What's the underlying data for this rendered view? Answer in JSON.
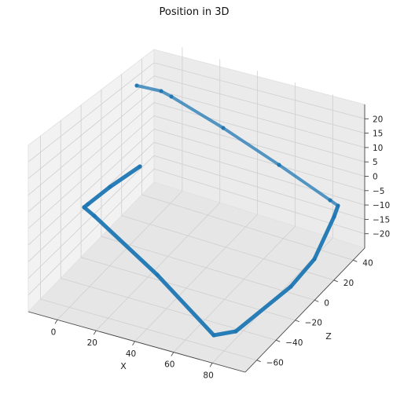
{
  "chart_data": {
    "type": "scatter",
    "title": "Position in 3D",
    "xlabel": "X",
    "ylabel": "",
    "zlabel": "Z",
    "x_ticks": [
      "0",
      "20",
      "40",
      "60",
      "80"
    ],
    "z_ticks": [
      "−60",
      "−40",
      "−20",
      "0",
      "20",
      "40"
    ],
    "y_ticks": [
      "20",
      "15",
      "10",
      "5",
      "0",
      "−5",
      "−10",
      "−15",
      "−20"
    ],
    "grid": true,
    "color": "#1f77b4",
    "path_vertices": [
      {
        "x": -6,
        "y": 20,
        "z": 45
      },
      {
        "x": 0,
        "y": 20,
        "z": 50
      },
      {
        "x": 8,
        "y": 19,
        "z": 52
      },
      {
        "x": 30,
        "y": 12,
        "z": 40
      },
      {
        "x": 55,
        "y": 2,
        "z": 25
      },
      {
        "x": 78,
        "y": -7,
        "z": 12
      },
      {
        "x": 83,
        "y": -10,
        "z": 8
      },
      {
        "x": 85,
        "y": -12,
        "z": 0
      },
      {
        "x": 82,
        "y": -18,
        "z": -25
      },
      {
        "x": 75,
        "y": -20,
        "z": -45
      },
      {
        "x": 60,
        "y": -21,
        "z": -55
      },
      {
        "x": 50,
        "y": -21,
        "z": -55
      },
      {
        "x": 30,
        "y": -18,
        "z": -35
      },
      {
        "x": 8,
        "y": -12,
        "z": -8
      },
      {
        "x": -2,
        "y": -8,
        "z": 4
      },
      {
        "x": -4,
        "y": -6,
        "z": 8
      },
      {
        "x": 2,
        "y": -3,
        "z": 12
      },
      {
        "x": 10,
        "y": -1,
        "z": 18
      }
    ]
  }
}
